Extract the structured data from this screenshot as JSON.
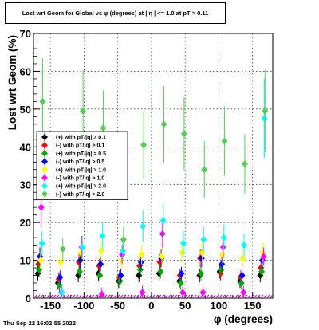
{
  "chart_data": {
    "type": "scatter",
    "title": "Lost wrt Geom for Global vs φ (degrees) at |  η | <= 1.0 at pT > 0.11",
    "xlabel": "φ (degrees)",
    "ylabel": "Lost wrt Geom (%)",
    "xlim": [
      -175,
      180
    ],
    "ylim": [
      0,
      70
    ],
    "xticks": [
      -150,
      -100,
      -50,
      0,
      50,
      100,
      150
    ],
    "yticks": [
      0,
      10,
      20,
      30,
      40,
      50,
      60,
      70
    ],
    "grid": true,
    "legend_position": "middle-left",
    "series": [
      {
        "name": "(+) with pT/|q| > 0.1",
        "color": "#000000",
        "x": [
          -165,
          -135,
          -105,
          -75,
          -45,
          -15,
          15,
          45,
          75,
          105,
          135,
          165
        ],
        "y": [
          6.5,
          4.0,
          6.0,
          6.5,
          4.5,
          6.0,
          6.5,
          4.5,
          6.0,
          7.0,
          4.5,
          6.0
        ]
      },
      {
        "name": "(-) with pT/|q| > 0.1",
        "color": "#ff0000",
        "x": [
          -165,
          -135,
          -105,
          -75,
          -45,
          -15,
          15,
          45,
          75,
          105,
          135,
          165
        ],
        "y": [
          9.0,
          5.0,
          9.5,
          8.5,
          5.5,
          8.5,
          9.5,
          6.0,
          10.5,
          6.5,
          5.5,
          8.0
        ]
      },
      {
        "name": "(+) with pT/|q| > 0.5",
        "color": "#00aa00",
        "x": [
          -165,
          -135,
          -105,
          -75,
          -45,
          -15,
          15,
          45,
          75,
          105,
          135,
          165
        ],
        "y": [
          7.5,
          3.5,
          7.0,
          6.0,
          4.5,
          7.5,
          7.0,
          4.0,
          6.5,
          7.5,
          4.0,
          7.0
        ]
      },
      {
        "name": "(-) with pT/|q| > 0.5",
        "color": "#0000ff",
        "x": [
          -165,
          -135,
          -105,
          -75,
          -45,
          -15,
          15,
          45,
          75,
          105,
          135,
          165
        ],
        "y": [
          11.0,
          5.5,
          10.0,
          9.0,
          6.0,
          9.5,
          10.5,
          6.5,
          10.5,
          9.0,
          6.0,
          10.0
        ]
      },
      {
        "name": "(+) with pT/|q| > 1.0",
        "color": "#ffff00",
        "x": [
          -165,
          -135,
          -105,
          -75,
          -45,
          -15,
          15,
          45,
          75,
          105,
          135,
          165
        ],
        "y": [
          10.0,
          9.5,
          12.0,
          12.5,
          10.0,
          11.5,
          11.0,
          12.0,
          12.0,
          11.5,
          10.5,
          12.0
        ]
      },
      {
        "name": "(-) with pT/|q| > 1.0",
        "color": "#ff00ff",
        "x": [
          -165,
          -135,
          -105,
          -75,
          -45,
          -15,
          15,
          45,
          75,
          105,
          135,
          165
        ],
        "y": [
          24.0,
          1.5,
          13.5,
          1.0,
          11.5,
          1.5,
          17.0,
          1.5,
          1.5,
          13.5,
          1.5,
          11.0
        ]
      },
      {
        "name": "(+) with pT/|q| > 2.0",
        "color": "#00ffff",
        "x": [
          -165,
          -135,
          -105,
          -75,
          -45,
          -15,
          15,
          45,
          75,
          105,
          135,
          165
        ],
        "y": [
          14.5,
          1.5,
          13.5,
          16.5,
          12.5,
          19.0,
          20.5,
          14.5,
          15.5,
          16.0,
          14.0,
          47.5
        ]
      },
      {
        "name": "(-) with pT/|q| > 2.0",
        "color": "#55cc55",
        "x": [
          -165,
          -135,
          -105,
          -75,
          -45,
          -15,
          15,
          45,
          75,
          105,
          135,
          165
        ],
        "y": [
          52.0,
          13.0,
          49.5,
          45.0,
          15.5,
          40.5,
          46.0,
          43.5,
          34.0,
          41.5,
          35.5,
          49.5
        ]
      }
    ]
  },
  "footer": {
    "timestamp": "Thu Sep 22 16:02:55 2022"
  }
}
